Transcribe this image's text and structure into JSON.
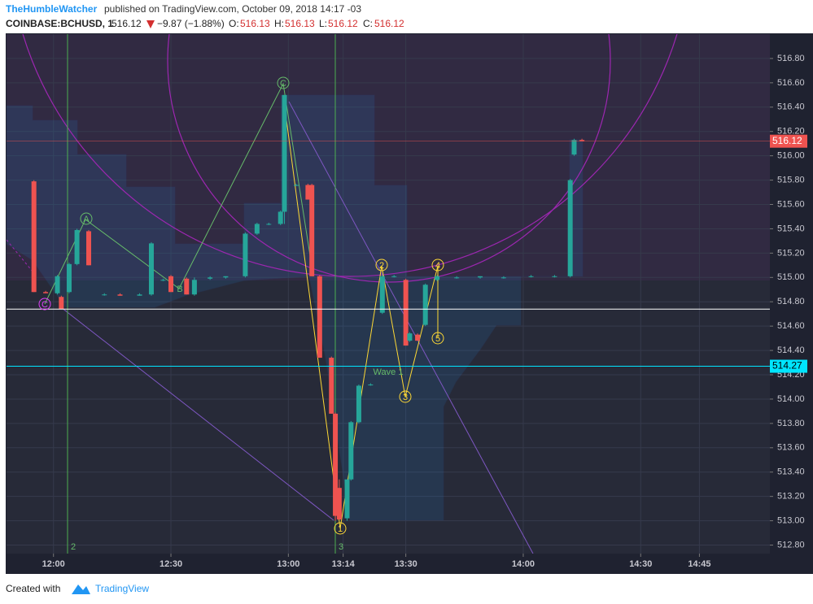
{
  "header": {
    "user": "TheHumbleWatcher",
    "published": "published on TradingView.com, October 09, 2018 14:17 -03",
    "symbol": "COINBASE:BCHUSD, 1",
    "price": 516.12,
    "change": "−9.87 (−1.88%)",
    "ohlc": [
      {
        "label": "O:",
        "value": 516.13
      },
      {
        "label": "H:",
        "value": 516.13
      },
      {
        "label": "L:",
        "value": 516.12
      },
      {
        "label": "C:",
        "value": 516.12
      }
    ]
  },
  "chart_data": {
    "type": "candlestick",
    "x": [
      -5,
      -2,
      1,
      2,
      4,
      6,
      9,
      13,
      17,
      22,
      25,
      28,
      30,
      34,
      36,
      40,
      44,
      49,
      52,
      55,
      58,
      59,
      62,
      65,
      66,
      68,
      71,
      72,
      73,
      75,
      76,
      78,
      81,
      84,
      87,
      90,
      91,
      93,
      95,
      98,
      103,
      109,
      115,
      122,
      128,
      132,
      133,
      135
    ],
    "open": [
      515.79,
      514.88,
      514.87,
      514.84,
      514.88,
      515.11,
      515.38,
      514.86,
      514.86,
      514.85,
      514.86,
      514.98,
      515.01,
      514.99,
      514.86,
      514.99,
      515.0,
      515.01,
      515.36,
      515.44,
      515.44,
      515.54,
      515.76,
      515.76,
      515.76,
      515.01,
      514.34,
      513.88,
      513.27,
      513.02,
      513.34,
      513.81,
      514.12,
      514.71,
      515.01,
      514.98,
      514.48,
      514.53,
      514.61,
      514.98,
      515.0,
      515.0,
      515.0,
      515.01,
      515.01,
      515.01,
      516.01,
      516.13
    ],
    "high": [
      515.8,
      514.89,
      515.02,
      514.85,
      515.12,
      515.4,
      515.39,
      514.87,
      514.87,
      514.87,
      515.29,
      514.99,
      515.02,
      515.0,
      515.0,
      515.01,
      515.01,
      515.37,
      515.45,
      515.45,
      515.55,
      516.5,
      515.77,
      515.77,
      515.77,
      515.02,
      514.35,
      513.89,
      513.34,
      513.34,
      513.82,
      514.12,
      514.13,
      515.02,
      515.02,
      514.99,
      514.55,
      514.54,
      514.95,
      515.02,
      515.01,
      515.01,
      515.01,
      515.02,
      515.02,
      515.81,
      516.14,
      516.14
    ],
    "low": [
      514.88,
      514.87,
      514.86,
      514.74,
      514.87,
      515.1,
      515.1,
      514.85,
      514.85,
      514.85,
      514.85,
      514.97,
      514.88,
      514.86,
      514.85,
      514.98,
      514.99,
      515.0,
      515.35,
      515.43,
      515.43,
      515.44,
      515.75,
      515.64,
      515.01,
      514.34,
      513.88,
      513.0,
      513.01,
      513.0,
      513.33,
      513.8,
      514.11,
      514.7,
      515.0,
      514.44,
      514.47,
      514.48,
      514.6,
      514.97,
      514.99,
      514.99,
      514.99,
      515.0,
      515.0,
      515.0,
      516.0,
      516.12
    ],
    "close": [
      514.88,
      514.87,
      515.01,
      514.74,
      515.11,
      515.39,
      515.1,
      514.86,
      514.85,
      514.86,
      515.28,
      514.98,
      514.88,
      514.86,
      514.98,
      515.0,
      515.01,
      515.36,
      515.44,
      515.44,
      515.54,
      516.5,
      515.76,
      515.64,
      515.01,
      514.34,
      513.88,
      513.04,
      513.01,
      513.34,
      513.81,
      514.11,
      514.12,
      515.01,
      515.01,
      514.44,
      514.54,
      514.48,
      514.94,
      515.01,
      515.0,
      515.01,
      515.0,
      515.01,
      515.01,
      515.8,
      516.13,
      516.12
    ],
    "up_color": "#26a69a",
    "down_color": "#ef5350",
    "xlim": [
      -12,
      183
    ],
    "xticks": [
      {
        "value": 0,
        "label": "12:00"
      },
      {
        "value": 30,
        "label": "12:30"
      },
      {
        "value": 60,
        "label": "13:00"
      },
      {
        "value": 74,
        "label": "13:14"
      },
      {
        "value": 90,
        "label": "13:30"
      },
      {
        "value": 120,
        "label": "14:00"
      },
      {
        "value": 150,
        "label": "14:30"
      },
      {
        "value": 165,
        "label": "14:45"
      }
    ],
    "ylim": [
      512.73,
      517.0
    ],
    "yticks": [
      {
        "value": 512.8,
        "label": "512.80"
      },
      {
        "value": 513.0,
        "label": "513.00"
      },
      {
        "value": 513.2,
        "label": "513.20"
      },
      {
        "value": 513.4,
        "label": "513.40"
      },
      {
        "value": 513.6,
        "label": "513.60"
      },
      {
        "value": 513.8,
        "label": "513.80"
      },
      {
        "value": 514.0,
        "label": "514.00"
      },
      {
        "value": 514.2,
        "label": "514.20"
      },
      {
        "value": 514.4,
        "label": "514.40"
      },
      {
        "value": 514.6,
        "label": "514.60"
      },
      {
        "value": 514.8,
        "label": "514.80"
      },
      {
        "value": 515.0,
        "label": "515.00"
      },
      {
        "value": 515.2,
        "label": "515.20"
      },
      {
        "value": 515.4,
        "label": "515.40"
      },
      {
        "value": 515.6,
        "label": "515.60"
      },
      {
        "value": 515.8,
        "label": "515.80"
      },
      {
        "value": 516.0,
        "label": "516.00"
      },
      {
        "value": 516.2,
        "label": "516.20"
      },
      {
        "value": 516.4,
        "label": "516.40"
      },
      {
        "value": 516.6,
        "label": "516.60"
      },
      {
        "value": 516.8,
        "label": "516.80"
      }
    ],
    "grid": true,
    "last_price": 516.12,
    "last_price_color": "#ef5350",
    "hlines": [
      {
        "value": 514.74,
        "color": "#ffffff"
      },
      {
        "value": 514.27,
        "color": "#00e5ff",
        "label": 514.27
      }
    ],
    "annotations": [
      "A",
      "B",
      "C",
      "C",
      "1",
      "2",
      "3",
      "4",
      "5",
      "Wave 1",
      "2",
      "3"
    ]
  },
  "footer": {
    "created": "Created with",
    "brand": "TradingView"
  }
}
